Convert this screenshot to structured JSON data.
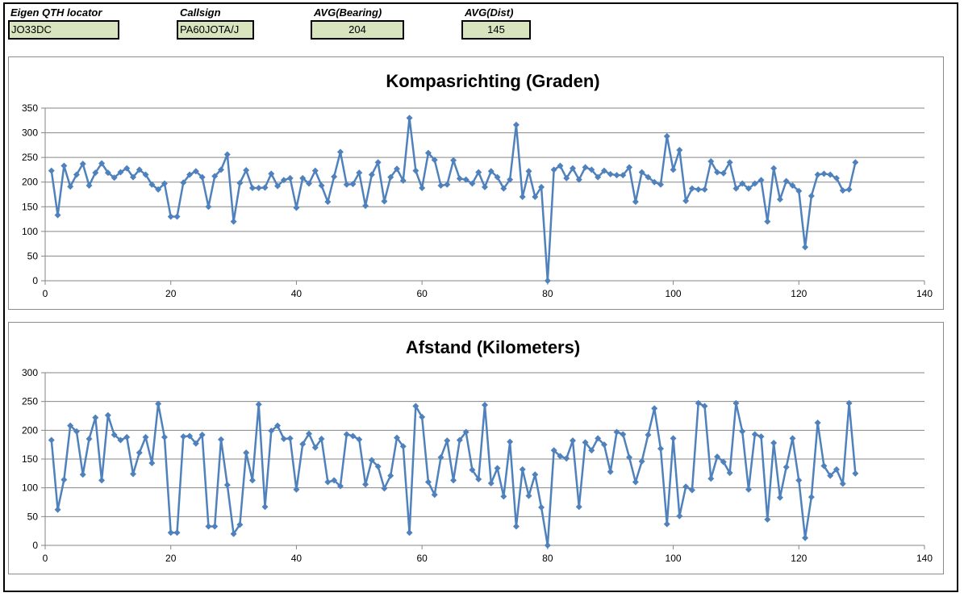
{
  "header": {
    "locator_label": "Eigen QTH locator",
    "locator_value": "JO33DC",
    "callsign_label": "Callsign",
    "callsign_value": "PA60JOTA/J",
    "bearing_label": "AVG(Bearing)",
    "bearing_value": "204",
    "dist_label": "AVG(Dist)",
    "dist_value": "145"
  },
  "colors": {
    "series": "#4f81bd",
    "field_bg": "#d7e4bd",
    "grid": "#868686"
  },
  "chart_data": [
    {
      "type": "line",
      "title": "Kompasrichting (Graden)",
      "xlabel": "",
      "ylabel": "",
      "xlim": [
        0,
        140
      ],
      "ylim": [
        0,
        350
      ],
      "xticks": [
        0,
        20,
        40,
        60,
        80,
        100,
        120,
        140
      ],
      "yticks": [
        0,
        50,
        100,
        150,
        200,
        250,
        300,
        350
      ],
      "grid": "horizontal",
      "marker": "diamond",
      "x_start": 1,
      "values": [
        223,
        133,
        233,
        191,
        215,
        237,
        193,
        219,
        238,
        219,
        209,
        220,
        228,
        210,
        225,
        215,
        195,
        185,
        197,
        130,
        130,
        199,
        215,
        222,
        210,
        150,
        212,
        225,
        256,
        120,
        198,
        224,
        188,
        188,
        189,
        217,
        192,
        204,
        208,
        148,
        208,
        197,
        223,
        193,
        160,
        211,
        261,
        195,
        196,
        219,
        152,
        215,
        240,
        161,
        210,
        227,
        203,
        330,
        223,
        188,
        259,
        245,
        193,
        195,
        244,
        207,
        205,
        197,
        220,
        190,
        222,
        210,
        187,
        205,
        316,
        170,
        222,
        170,
        190,
        0,
        225,
        233,
        208,
        228,
        205,
        230,
        225,
        210,
        223,
        216,
        214,
        214,
        230,
        160,
        220,
        210,
        200,
        195,
        293,
        225,
        265,
        162,
        187,
        185,
        185,
        242,
        220,
        218,
        240,
        187,
        197,
        187,
        197,
        204,
        120,
        228,
        165,
        202,
        193,
        182,
        68,
        172,
        215,
        217,
        215,
        208,
        183,
        185,
        240
      ]
    },
    {
      "type": "line",
      "title": "Afstand (Kilometers)",
      "xlabel": "",
      "ylabel": "",
      "xlim": [
        0,
        140
      ],
      "ylim": [
        0,
        300
      ],
      "xticks": [
        0,
        20,
        40,
        60,
        80,
        100,
        120,
        140
      ],
      "yticks": [
        0,
        50,
        100,
        150,
        200,
        250,
        300
      ],
      "grid": "horizontal",
      "marker": "diamond",
      "x_start": 1,
      "values": [
        183,
        62,
        114,
        208,
        198,
        123,
        185,
        222,
        113,
        226,
        192,
        183,
        188,
        124,
        161,
        188,
        143,
        246,
        188,
        22,
        22,
        189,
        190,
        177,
        192,
        33,
        33,
        184,
        105,
        20,
        36,
        161,
        113,
        245,
        67,
        199,
        208,
        185,
        186,
        97,
        176,
        194,
        170,
        185,
        110,
        113,
        103,
        193,
        190,
        184,
        106,
        148,
        137,
        99,
        121,
        187,
        172,
        22,
        242,
        223,
        110,
        88,
        153,
        182,
        113,
        183,
        197,
        131,
        115,
        244,
        108,
        134,
        85,
        180,
        33,
        132,
        86,
        123,
        66,
        0,
        165,
        155,
        151,
        182,
        67,
        179,
        165,
        186,
        175,
        128,
        197,
        193,
        153,
        110,
        146,
        192,
        238,
        168,
        37,
        186,
        51,
        102,
        96,
        247,
        242,
        116,
        154,
        145,
        126,
        247,
        198,
        97,
        193,
        189,
        45,
        178,
        83,
        136,
        186,
        113,
        13,
        84,
        213,
        138,
        121,
        132,
        107,
        247,
        125
      ]
    }
  ]
}
